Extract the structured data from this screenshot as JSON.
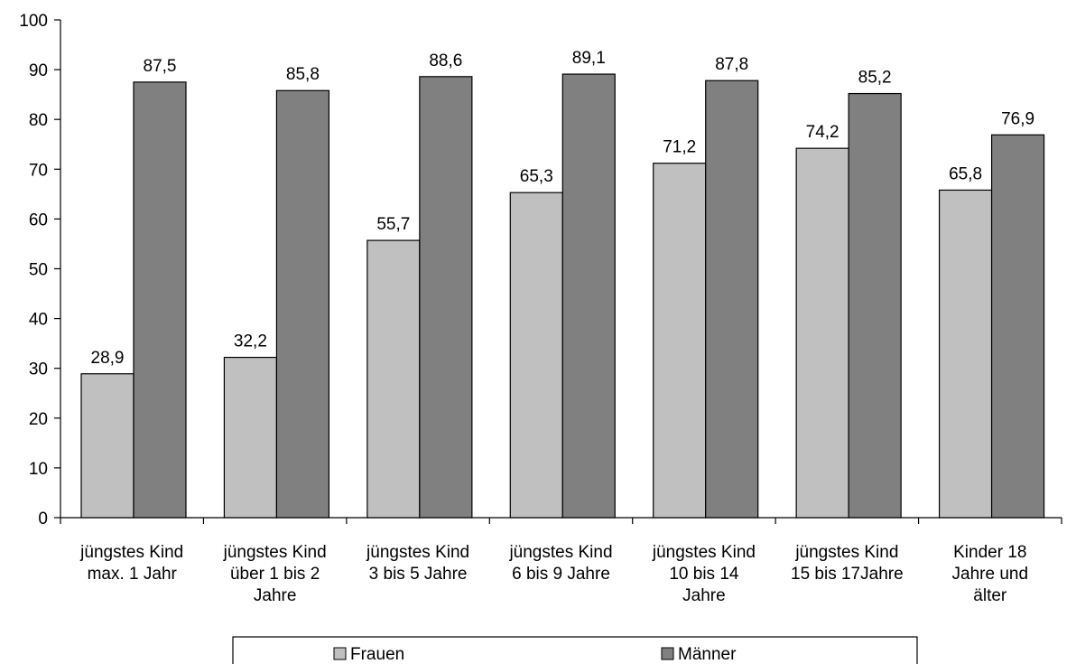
{
  "chart_data": {
    "type": "bar",
    "categories": [
      [
        "jüngstes Kind",
        "max. 1 Jahr"
      ],
      [
        "jüngstes Kind",
        "über 1 bis 2",
        "Jahre"
      ],
      [
        "jüngstes Kind",
        "3 bis 5 Jahre"
      ],
      [
        "jüngstes Kind",
        "6 bis 9 Jahre"
      ],
      [
        "jüngstes Kind",
        "10 bis 14",
        "Jahre"
      ],
      [
        "jüngstes Kind",
        "15 bis 17Jahre"
      ],
      [
        "Kinder 18",
        "Jahre und",
        "älter"
      ]
    ],
    "series": [
      {
        "name": "Frauen",
        "color": "#c0c0c0",
        "values": [
          28.9,
          32.2,
          55.7,
          65.3,
          71.2,
          74.2,
          65.8
        ],
        "labels": [
          "28,9",
          "32,2",
          "55,7",
          "65,3",
          "71,2",
          "74,2",
          "65,8"
        ]
      },
      {
        "name": "Männer",
        "color": "#808080",
        "values": [
          87.5,
          85.8,
          88.6,
          89.1,
          87.8,
          85.2,
          76.9
        ],
        "labels": [
          "87,5",
          "85,8",
          "88,6",
          "89,1",
          "87,8",
          "85,2",
          "76,9"
        ]
      }
    ],
    "yticks": [
      "0",
      "10",
      "20",
      "30",
      "40",
      "50",
      "60",
      "70",
      "80",
      "90",
      "100"
    ],
    "ylim": [
      0,
      100
    ],
    "grid": false,
    "legend_position": "bottom"
  }
}
